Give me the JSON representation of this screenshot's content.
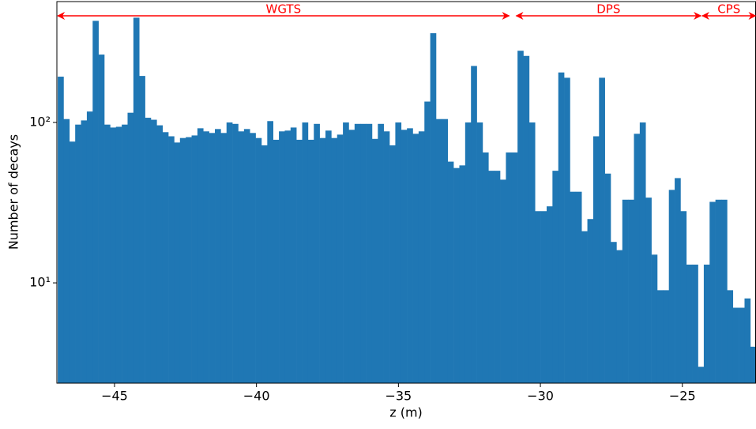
{
  "chart_data": {
    "type": "histogram",
    "xlabel": "z (m)",
    "ylabel": "Number of decays",
    "color": "#1f77b4",
    "log_y": true,
    "bins": [
      -47,
      -46.795,
      -46.59,
      -46.385,
      -46.18,
      -45.975,
      -45.77,
      -45.565,
      -45.36,
      -45.155,
      -44.95,
      -44.745,
      -44.54,
      -44.335,
      -44.13,
      -43.925,
      -43.72,
      -43.515,
      -43.31,
      -43.105,
      -42.9,
      -42.695,
      -42.49,
      -42.285,
      -42.08,
      -41.875,
      -41.67,
      -41.465,
      -41.26,
      -41.055,
      -40.85,
      -40.645,
      -40.44,
      -40.235,
      -40.03,
      -39.825,
      -39.62,
      -39.415,
      -39.21,
      -39.005,
      -38.8,
      -38.595,
      -38.39,
      -38.185,
      -37.98,
      -37.775,
      -37.57,
      -37.365,
      -37.16,
      -36.955,
      -36.75,
      -36.545,
      -36.34,
      -36.135,
      -35.93,
      -35.725,
      -35.52,
      -35.315,
      -35.11,
      -34.905,
      -34.7,
      -34.495,
      -34.29,
      -34.085,
      -33.88,
      -33.675,
      -33.47,
      -33.265,
      -33.06,
      -32.855,
      -32.65,
      -32.445,
      -32.24,
      -32.035,
      -31.83,
      -31.625,
      -31.42,
      -31.215,
      -31.01,
      -30.805,
      -30.6,
      -30.395,
      -30.19,
      -29.985,
      -29.78,
      -29.575,
      -29.37,
      -29.165,
      -28.96,
      -28.755,
      -28.55,
      -28.345,
      -28.14,
      -27.935,
      -27.73,
      -27.525,
      -27.32,
      -27.115,
      -26.91,
      -26.705,
      -26.5,
      -26.295,
      -26.09,
      -25.885,
      -25.68,
      -25.475,
      -25.27,
      -25.065,
      -24.86,
      -24.655,
      -24.45,
      -24.245,
      -24.04,
      -23.835,
      -23.63,
      -23.425,
      -23.22,
      -23.015,
      -22.81,
      -22.605,
      -22.4
    ],
    "counts": [
      193,
      105,
      76,
      97,
      103,
      117,
      430,
      265,
      97,
      93,
      94,
      97,
      115,
      450,
      195,
      107,
      104,
      96,
      87,
      82,
      75,
      80,
      81,
      83,
      92,
      88,
      86,
      91,
      86,
      100,
      98,
      88,
      91,
      86,
      80,
      72,
      102,
      78,
      88,
      89,
      93,
      78,
      100,
      78,
      98,
      80,
      89,
      80,
      84,
      100,
      90,
      98,
      98,
      98,
      79,
      98,
      88,
      72,
      100,
      90,
      92,
      85,
      88,
      135,
      360,
      105,
      105,
      57,
      52,
      54,
      100,
      225,
      100,
      65,
      50,
      50,
      44,
      65,
      65,
      280,
      260,
      100,
      28,
      28,
      30,
      50,
      205,
      190,
      37,
      37,
      21,
      25,
      82,
      190,
      48,
      18,
      16,
      33,
      33,
      85,
      100,
      34,
      15,
      9,
      9,
      38,
      45,
      28,
      13,
      13,
      3,
      13,
      32,
      33,
      33,
      9,
      7,
      7,
      8,
      4
    ],
    "xlim": [
      -47.03,
      -22.42
    ],
    "ylim": [
      2.37,
      567
    ],
    "xticks": [
      {
        "value": -45,
        "label": "−45"
      },
      {
        "value": -40,
        "label": "−40"
      },
      {
        "value": -35,
        "label": "−35"
      },
      {
        "value": -30,
        "label": "−30"
      },
      {
        "value": -25,
        "label": "−25"
      }
    ],
    "yticks": [
      {
        "value": 10,
        "label": "10¹"
      },
      {
        "value": 100,
        "label": "10²"
      }
    ],
    "annotations": [
      {
        "text": "WGTS",
        "x": [
          -47.0,
          -31.1
        ],
        "color": "#ff0000"
      },
      {
        "text": "DPS",
        "x": [
          -30.85,
          -24.35
        ],
        "color": "#ff0000"
      },
      {
        "text": "CPS",
        "x": [
          -24.3,
          -22.42
        ],
        "color": "#ff0000"
      }
    ]
  }
}
